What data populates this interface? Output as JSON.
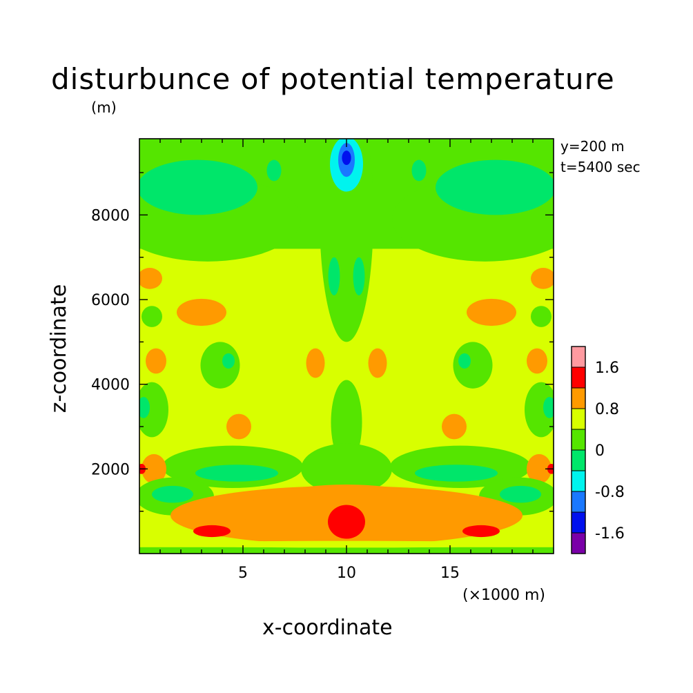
{
  "figure": {
    "title": "disturbunce of potential temperature",
    "units_label": "(m)",
    "info_lines": [
      "y=200 m",
      "t=5400 sec"
    ],
    "x_unit_note": "(×1000 m)"
  },
  "chart_data": {
    "type": "heatmap",
    "title": "disturbunce of potential temperature",
    "xlabel": "x-coordinate",
    "ylabel": "z-coordinate",
    "x_unit": "(×1000 m)",
    "xlim": [
      0,
      20
    ],
    "ylim": [
      0,
      9800
    ],
    "x_ticks": [
      5,
      10,
      15
    ],
    "y_ticks": [
      2000,
      4000,
      6000,
      8000
    ],
    "colorbar": {
      "levels": [
        -2.0,
        -1.6,
        -1.2,
        -0.8,
        -0.4,
        0,
        0.4,
        0.8,
        1.2,
        1.6,
        2.0
      ],
      "colors": [
        "#7a00a8",
        "#0010ee",
        "#1a78ff",
        "#00f4ee",
        "#00e66a",
        "#55e500",
        "#d8ff00",
        "#ff9a00",
        "#ff0000",
        "#ff9aa0"
      ],
      "labels": [
        "1.6",
        "0.8",
        "0",
        "-0.8",
        "-1.6"
      ],
      "label_values": [
        1.6,
        0.8,
        0,
        -0.8,
        -1.6
      ]
    },
    "base_level": 0.4,
    "features": [
      {
        "shape": "rect",
        "x": [
          0,
          20
        ],
        "y": [
          7200,
          9800
        ],
        "level": 0.0
      },
      {
        "shape": "ellipse",
        "cx": 10,
        "cy": 8000,
        "rx": 1.3,
        "ry": 3000,
        "level": 0.0
      },
      {
        "shape": "ellipse",
        "cx": 3.3,
        "cy": 7900,
        "rx": 4.5,
        "ry": 1000,
        "level": 0.0
      },
      {
        "shape": "ellipse",
        "cx": 16.7,
        "cy": 7900,
        "rx": 4.5,
        "ry": 1000,
        "level": 0.0
      },
      {
        "shape": "ellipse",
        "cx": 2.8,
        "cy": 8650,
        "rx": 2.9,
        "ry": 650,
        "level": -0.4
      },
      {
        "shape": "ellipse",
        "cx": 17.2,
        "cy": 8650,
        "rx": 2.9,
        "ry": 650,
        "level": -0.4
      },
      {
        "shape": "ellipse",
        "cx": 6.5,
        "cy": 9050,
        "rx": 0.35,
        "ry": 250,
        "level": -0.4
      },
      {
        "shape": "ellipse",
        "cx": 13.5,
        "cy": 9050,
        "rx": 0.35,
        "ry": 250,
        "level": -0.4
      },
      {
        "shape": "ellipse",
        "cx": 10,
        "cy": 9200,
        "rx": 0.8,
        "ry": 650,
        "level": -0.8
      },
      {
        "shape": "ellipse",
        "cx": 10,
        "cy": 9300,
        "rx": 0.4,
        "ry": 400,
        "level": -1.2
      },
      {
        "shape": "ellipse",
        "cx": 10,
        "cy": 9350,
        "rx": 0.22,
        "ry": 170,
        "level": -1.6
      },
      {
        "shape": "ellipse",
        "cx": 9.4,
        "cy": 6550,
        "rx": 0.28,
        "ry": 450,
        "level": -0.4
      },
      {
        "shape": "ellipse",
        "cx": 10.6,
        "cy": 6550,
        "rx": 0.28,
        "ry": 450,
        "level": -0.4
      },
      {
        "shape": "ellipse",
        "cx": 0.5,
        "cy": 6500,
        "rx": 0.6,
        "ry": 250,
        "level": 0.8
      },
      {
        "shape": "ellipse",
        "cx": 19.5,
        "cy": 6500,
        "rx": 0.6,
        "ry": 250,
        "level": 0.8
      },
      {
        "shape": "ellipse",
        "cx": 3,
        "cy": 5700,
        "rx": 1.2,
        "ry": 320,
        "level": 0.8
      },
      {
        "shape": "ellipse",
        "cx": 17,
        "cy": 5700,
        "rx": 1.2,
        "ry": 320,
        "level": 0.8
      },
      {
        "shape": "ellipse",
        "cx": 0.6,
        "cy": 5600,
        "rx": 0.5,
        "ry": 250,
        "level": 0.0
      },
      {
        "shape": "ellipse",
        "cx": 19.4,
        "cy": 5600,
        "rx": 0.5,
        "ry": 250,
        "level": 0.0
      },
      {
        "shape": "ellipse",
        "cx": 0.8,
        "cy": 4550,
        "rx": 0.5,
        "ry": 300,
        "level": 0.8
      },
      {
        "shape": "ellipse",
        "cx": 19.2,
        "cy": 4550,
        "rx": 0.5,
        "ry": 300,
        "level": 0.8
      },
      {
        "shape": "ellipse",
        "cx": 3.9,
        "cy": 4450,
        "rx": 0.95,
        "ry": 550,
        "level": 0.0
      },
      {
        "shape": "ellipse",
        "cx": 16.1,
        "cy": 4450,
        "rx": 0.95,
        "ry": 550,
        "level": 0.0
      },
      {
        "shape": "ellipse",
        "cx": 4.3,
        "cy": 4550,
        "rx": 0.3,
        "ry": 180,
        "level": -0.4
      },
      {
        "shape": "ellipse",
        "cx": 15.7,
        "cy": 4550,
        "rx": 0.3,
        "ry": 180,
        "level": -0.4
      },
      {
        "shape": "ellipse",
        "cx": 8.5,
        "cy": 4500,
        "rx": 0.45,
        "ry": 350,
        "level": 0.8
      },
      {
        "shape": "ellipse",
        "cx": 11.5,
        "cy": 4500,
        "rx": 0.45,
        "ry": 350,
        "level": 0.8
      },
      {
        "shape": "ellipse",
        "cx": 0.6,
        "cy": 3400,
        "rx": 0.8,
        "ry": 650,
        "level": 0.0
      },
      {
        "shape": "ellipse",
        "cx": 19.4,
        "cy": 3400,
        "rx": 0.8,
        "ry": 650,
        "level": 0.0
      },
      {
        "shape": "ellipse",
        "cx": 0.2,
        "cy": 3450,
        "rx": 0.3,
        "ry": 250,
        "level": -0.4
      },
      {
        "shape": "ellipse",
        "cx": 19.8,
        "cy": 3450,
        "rx": 0.3,
        "ry": 250,
        "level": -0.4
      },
      {
        "shape": "ellipse",
        "cx": 4.8,
        "cy": 3000,
        "rx": 0.6,
        "ry": 300,
        "level": 0.8
      },
      {
        "shape": "ellipse",
        "cx": 15.2,
        "cy": 3000,
        "rx": 0.6,
        "ry": 300,
        "level": 0.8
      },
      {
        "shape": "ellipse",
        "cx": 10,
        "cy": 3100,
        "rx": 0.75,
        "ry": 1000,
        "level": 0.0
      },
      {
        "shape": "ellipse",
        "cx": 4.5,
        "cy": 2050,
        "rx": 3.4,
        "ry": 500,
        "level": 0.0
      },
      {
        "shape": "ellipse",
        "cx": 15.5,
        "cy": 2050,
        "rx": 3.4,
        "ry": 500,
        "level": 0.0
      },
      {
        "shape": "ellipse",
        "cx": 10,
        "cy": 2000,
        "rx": 2.2,
        "ry": 600,
        "level": 0.0
      },
      {
        "shape": "ellipse",
        "cx": 4.7,
        "cy": 1900,
        "rx": 2.0,
        "ry": 200,
        "level": -0.4
      },
      {
        "shape": "ellipse",
        "cx": 15.3,
        "cy": 1900,
        "rx": 2.0,
        "ry": 200,
        "level": -0.4
      },
      {
        "shape": "ellipse",
        "cx": 0.7,
        "cy": 2000,
        "rx": 0.6,
        "ry": 350,
        "level": 0.8
      },
      {
        "shape": "ellipse",
        "cx": 19.3,
        "cy": 2000,
        "rx": 0.6,
        "ry": 350,
        "level": 0.8
      },
      {
        "shape": "ellipse",
        "cx": 0.1,
        "cy": 2000,
        "rx": 0.2,
        "ry": 120,
        "level": 1.2
      },
      {
        "shape": "ellipse",
        "cx": 19.9,
        "cy": 2000,
        "rx": 0.2,
        "ry": 120,
        "level": 1.2
      },
      {
        "shape": "ellipse",
        "cx": 1.7,
        "cy": 1350,
        "rx": 1.9,
        "ry": 450,
        "level": 0.0
      },
      {
        "shape": "ellipse",
        "cx": 18.3,
        "cy": 1350,
        "rx": 1.9,
        "ry": 450,
        "level": 0.0
      },
      {
        "shape": "ellipse",
        "cx": 1.6,
        "cy": 1400,
        "rx": 1.0,
        "ry": 200,
        "level": -0.4
      },
      {
        "shape": "ellipse",
        "cx": 18.4,
        "cy": 1400,
        "rx": 1.0,
        "ry": 200,
        "level": -0.4
      },
      {
        "shape": "ellipse",
        "cx": 10,
        "cy": 900,
        "rx": 8.5,
        "ry": 700,
        "level": 0.8
      },
      {
        "shape": "ellipse",
        "cx": 10,
        "cy": 950,
        "rx": 5.0,
        "ry": 680,
        "level": 0.8
      },
      {
        "shape": "ellipse",
        "cx": 10,
        "cy": 750,
        "rx": 0.9,
        "ry": 400,
        "level": 1.2
      },
      {
        "shape": "ellipse",
        "cx": 3.5,
        "cy": 530,
        "rx": 0.9,
        "ry": 140,
        "level": 1.2
      },
      {
        "shape": "ellipse",
        "cx": 16.5,
        "cy": 530,
        "rx": 0.9,
        "ry": 140,
        "level": 1.2
      },
      {
        "shape": "rect",
        "x": [
          0,
          20
        ],
        "y": [
          0,
          150
        ],
        "level": 0.0
      },
      {
        "shape": "ellipse",
        "cx": 10,
        "cy": 220,
        "rx": 9.5,
        "ry": 80,
        "level": 0.4
      }
    ]
  }
}
